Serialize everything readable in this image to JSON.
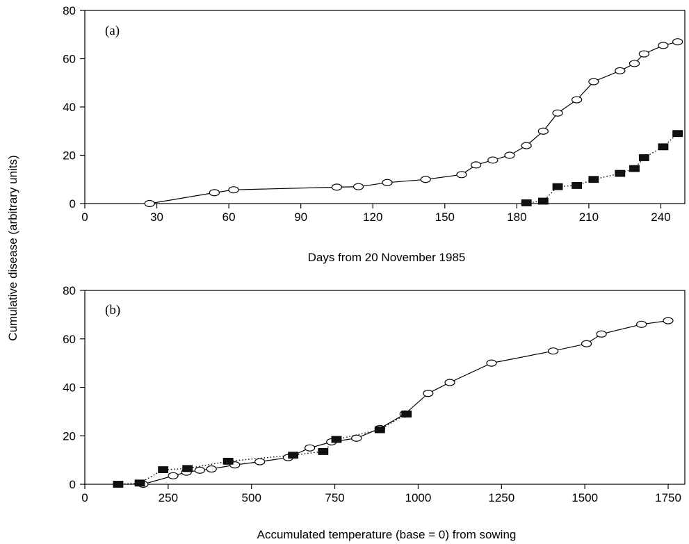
{
  "chart_data": [
    {
      "type": "line",
      "panel_label": "(a)",
      "xlabel": "Days from 20 November 1985",
      "ylabel": "Cumulative disease (arbitrary units)",
      "xlim": [
        0,
        250
      ],
      "ylim": [
        0,
        80
      ],
      "xticks": [
        0,
        30,
        60,
        90,
        120,
        150,
        180,
        210,
        240
      ],
      "yticks": [
        0,
        20,
        40,
        60,
        80
      ],
      "grid": false,
      "series": [
        {
          "marker": "open-ellipse",
          "line_style": "solid",
          "x": [
            27,
            54,
            62,
            105,
            114,
            126,
            142,
            157,
            163,
            170,
            177,
            184,
            191,
            197,
            205,
            212,
            223,
            229,
            233,
            241,
            247
          ],
          "y": [
            0,
            4.5,
            5.7,
            6.8,
            7,
            8.7,
            10,
            12,
            16,
            18,
            20,
            24,
            30,
            37.5,
            43,
            50.5,
            55,
            58,
            62,
            65.5,
            67
          ]
        },
        {
          "marker": "filled-square",
          "line_style": "dotted",
          "x": [
            184,
            191,
            197,
            205,
            212,
            223,
            229,
            233,
            241,
            247
          ],
          "y": [
            0.3,
            1,
            7,
            7.5,
            10,
            12.5,
            14.5,
            19,
            23.5,
            29
          ]
        }
      ]
    },
    {
      "type": "line",
      "panel_label": "(b)",
      "xlabel": "Accumulated temperature (base = 0) from sowing",
      "ylabel": "Cumulative disease (arbitrary units)",
      "xlim": [
        0,
        1800
      ],
      "ylim": [
        0,
        80
      ],
      "xticks": [
        0,
        250,
        500,
        750,
        1000,
        1250,
        1500,
        1750
      ],
      "yticks": [
        0,
        20,
        40,
        60,
        80
      ],
      "grid": false,
      "series": [
        {
          "marker": "open-ellipse",
          "line_style": "solid",
          "x": [
            175,
            265,
            305,
            345,
            380,
            450,
            525,
            610,
            675,
            740,
            815,
            885,
            960,
            1030,
            1095,
            1220,
            1405,
            1505,
            1550,
            1670,
            1750
          ],
          "y": [
            0,
            3.5,
            5,
            5.8,
            6.3,
            8,
            9.3,
            11,
            15,
            17.5,
            19,
            23,
            29,
            37.5,
            42,
            50,
            55,
            58,
            62,
            66,
            67.5
          ]
        },
        {
          "marker": "filled-square",
          "line_style": "dotted",
          "x": [
            100,
            165,
            235,
            308,
            430,
            625,
            715,
            755,
            885,
            965
          ],
          "y": [
            0,
            0.5,
            6,
            6.5,
            9.5,
            12,
            13.5,
            18.5,
            22.5,
            29
          ]
        }
      ]
    }
  ]
}
